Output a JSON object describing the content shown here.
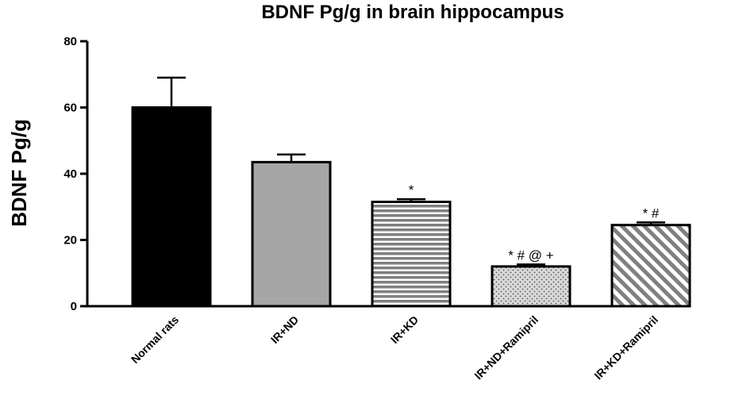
{
  "chart_data": {
    "type": "bar",
    "title": "BDNF Pg/g in brain hippocampus",
    "ylabel": "BDNF Pg/g",
    "xlabel": "",
    "ylim": [
      0,
      80
    ],
    "yticks": [
      0,
      20,
      40,
      60,
      80
    ],
    "categories": [
      "Normal rats",
      "IR+ND",
      "IR+KD",
      "IR+ND+Ramipril",
      "IR+KD+Ramipril"
    ],
    "values": [
      60,
      43.5,
      31.5,
      12,
      24.5
    ],
    "errors": [
      9,
      2.3,
      0.8,
      0.6,
      0.8
    ],
    "annotations": [
      "",
      "",
      "*",
      "* # @ +",
      "* #"
    ],
    "fills": [
      "solid-black",
      "solid-gray",
      "horizontal-stripes",
      "dots",
      "diagonal-stripes"
    ],
    "colors": {
      "black": "#000000",
      "gray": "#a6a6a6",
      "stripe_gray": "#7f7f7f",
      "dots_bg": "#d9d9d9",
      "diag_gray": "#808080"
    },
    "grid": false,
    "legend": "none"
  }
}
